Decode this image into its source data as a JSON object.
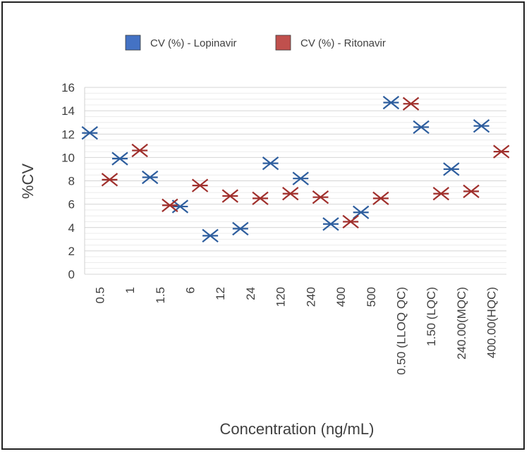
{
  "chart_data": {
    "type": "scatter",
    "title": "",
    "xlabel": "Concentration (ng/mL)",
    "ylabel": "%CV",
    "ylim": [
      0,
      16
    ],
    "yticks": [
      0,
      2,
      4,
      6,
      8,
      10,
      12,
      14,
      16
    ],
    "grid": true,
    "legend_position": "top",
    "categories": [
      "0.5",
      "1",
      "1.5",
      "6",
      "12",
      "24",
      "120",
      "240",
      "400",
      "500",
      "0.50 (LLOQ QC)",
      "1.50 (LQC)",
      "240.00(MQC)",
      "400.00(HQC)"
    ],
    "series": [
      {
        "name": "CV (%) - Lopinavir",
        "color": "#2E5E9E",
        "legend_color": "#4472C4",
        "marker": "x",
        "values": [
          12.1,
          9.9,
          8.3,
          5.8,
          3.3,
          3.9,
          9.5,
          8.2,
          4.3,
          5.3,
          14.7,
          12.6,
          9.0,
          12.7
        ]
      },
      {
        "name": "CV (%) - Ritonavir",
        "color": "#A0302D",
        "legend_color": "#C0504D",
        "marker": "x",
        "values": [
          8.1,
          10.6,
          5.9,
          7.6,
          6.7,
          6.5,
          6.9,
          6.6,
          4.5,
          6.5,
          14.6,
          6.9,
          7.1,
          10.5
        ]
      }
    ]
  }
}
